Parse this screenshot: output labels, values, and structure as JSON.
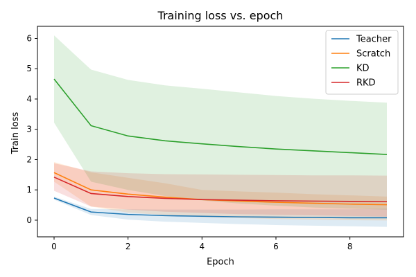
{
  "chart_data": {
    "type": "line",
    "title": "Training loss vs. epoch",
    "xlabel": "Epoch",
    "ylabel": "Train loss",
    "xlim": [
      -0.45,
      9.45
    ],
    "ylim": [
      -0.55,
      6.4
    ],
    "xticks": [
      0,
      2,
      4,
      6,
      8
    ],
    "yticks": [
      0,
      1,
      2,
      3,
      4,
      5,
      6
    ],
    "grid": false,
    "legend_position": "top-right",
    "x": [
      0,
      1,
      2,
      3,
      4,
      5,
      6,
      7,
      8,
      9
    ],
    "series": [
      {
        "name": "Teacher",
        "color": "#1f77b4",
        "values": [
          0.73,
          0.27,
          0.19,
          0.15,
          0.13,
          0.11,
          0.1,
          0.09,
          0.08,
          0.08
        ],
        "lower": [
          0.68,
          0.17,
          0.02,
          -0.05,
          -0.09,
          -0.13,
          -0.16,
          -0.18,
          -0.2,
          -0.22
        ],
        "upper": [
          0.78,
          0.37,
          0.36,
          0.35,
          0.35,
          0.35,
          0.36,
          0.36,
          0.36,
          0.38
        ]
      },
      {
        "name": "Scratch",
        "color": "#ff7f0e",
        "values": [
          1.57,
          1.0,
          0.86,
          0.76,
          0.68,
          0.63,
          0.59,
          0.56,
          0.53,
          0.51
        ],
        "lower": [
          1.27,
          0.45,
          0.25,
          0.17,
          0.1,
          0.07,
          0.04,
          0.02,
          0.0,
          -0.01
        ],
        "upper": [
          1.92,
          1.58,
          1.4,
          1.22,
          1.0,
          0.95,
          0.91,
          0.86,
          0.82,
          0.78
        ]
      },
      {
        "name": "KD",
        "color": "#2ca02c",
        "values": [
          4.66,
          3.12,
          2.78,
          2.62,
          2.52,
          2.43,
          2.35,
          2.29,
          2.23,
          2.17
        ],
        "lower": [
          3.22,
          1.27,
          1.0,
          0.8,
          0.65,
          0.55,
          0.48,
          0.42,
          0.38,
          0.35
        ],
        "upper": [
          6.1,
          4.97,
          4.63,
          4.45,
          4.34,
          4.22,
          4.1,
          4.01,
          3.94,
          3.88
        ]
      },
      {
        "name": "RKD",
        "color": "#d62728",
        "values": [
          1.42,
          0.88,
          0.78,
          0.72,
          0.68,
          0.66,
          0.64,
          0.63,
          0.62,
          0.61
        ],
        "lower": [
          0.97,
          0.45,
          0.35,
          0.28,
          0.24,
          0.2,
          0.18,
          0.16,
          0.14,
          0.12
        ],
        "upper": [
          1.88,
          1.61,
          1.55,
          1.52,
          1.51,
          1.5,
          1.49,
          1.48,
          1.48,
          1.47
        ]
      }
    ]
  }
}
